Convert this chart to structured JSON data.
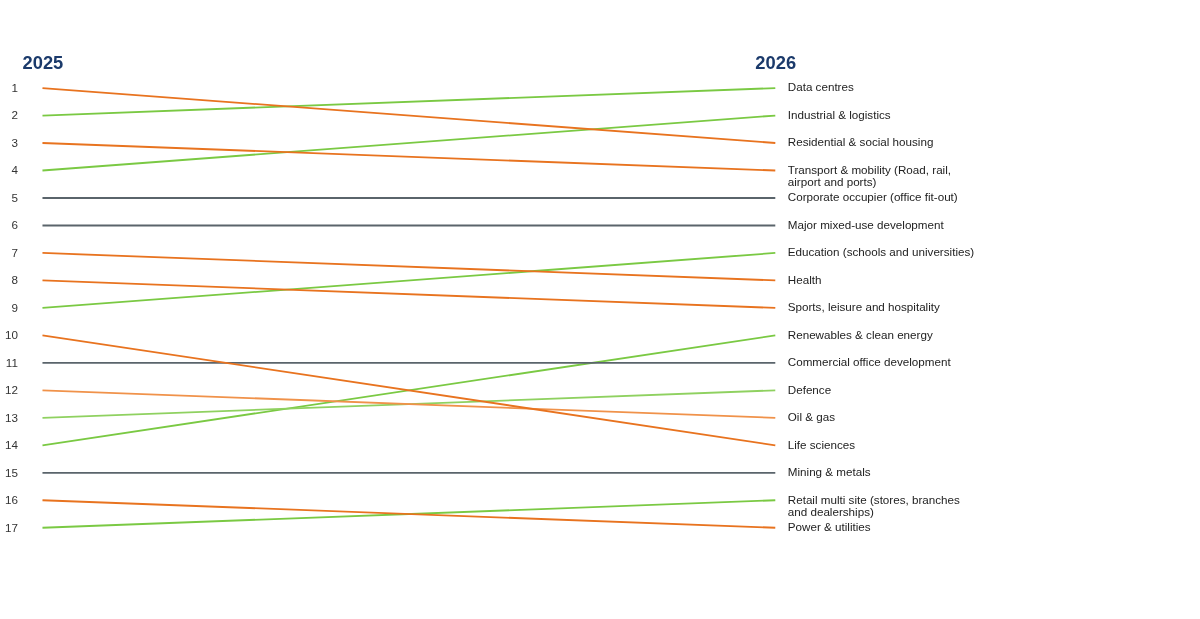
{
  "chart_data": {
    "type": "line",
    "categories": [
      "2025",
      "2026"
    ],
    "series": [
      {
        "name": "Data centres",
        "color": "#7ac943",
        "values": [
          2,
          1
        ]
      },
      {
        "name": "Industrial & logistics",
        "color": "#7ac943",
        "values": [
          4,
          2
        ]
      },
      {
        "name": "Residential & social housing",
        "color": "#e8731f",
        "values": [
          1,
          3
        ]
      },
      {
        "name": "Transport & mobility (Road, rail, airport and ports)",
        "color": "#e8731f",
        "values": [
          3,
          4
        ]
      },
      {
        "name": "Corporate occupier (office fit-out)",
        "color": "#5a646b",
        "values": [
          5,
          5
        ]
      },
      {
        "name": "Major mixed-use development",
        "color": "#5a646b",
        "values": [
          6,
          6
        ]
      },
      {
        "name": "Education (schools and universities)",
        "color": "#7ac943",
        "values": [
          9,
          7
        ]
      },
      {
        "name": "Health",
        "color": "#e8731f",
        "values": [
          7,
          8
        ]
      },
      {
        "name": "Sports, leisure and hospitality",
        "color": "#e8731f",
        "values": [
          8,
          9
        ]
      },
      {
        "name": "Renewables & clean energy",
        "color": "#7ac943",
        "values": [
          14,
          10
        ]
      },
      {
        "name": "Commercial office development",
        "color": "#5a646b",
        "values": [
          11,
          11
        ]
      },
      {
        "name": "Defence",
        "color": "#8fd160",
        "values": [
          13,
          12
        ]
      },
      {
        "name": "Oil & gas",
        "color": "#f0924a",
        "values": [
          12,
          13
        ]
      },
      {
        "name": "Life sciences",
        "color": "#e8731f",
        "values": [
          10,
          14
        ]
      },
      {
        "name": "Mining & metals",
        "color": "#5a646b",
        "values": [
          15,
          15
        ]
      },
      {
        "name": "Retail multi site (stores, branches and dealerships)",
        "color": "#7ac943",
        "values": [
          17,
          16
        ]
      },
      {
        "name": "Power & utilities",
        "color": "#e8731f",
        "values": [
          16,
          17
        ]
      }
    ],
    "ylim": [
      17,
      1
    ],
    "yticks": [
      1,
      2,
      3,
      4,
      5,
      6,
      7,
      8,
      9,
      10,
      11,
      12,
      13,
      14,
      15,
      16,
      17
    ],
    "legend": false,
    "grid": false
  }
}
